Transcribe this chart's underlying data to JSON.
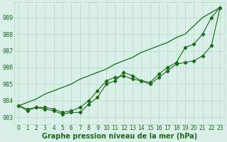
{
  "x": [
    0,
    1,
    2,
    3,
    4,
    5,
    6,
    7,
    8,
    9,
    10,
    11,
    12,
    13,
    14,
    15,
    16,
    17,
    18,
    19,
    20,
    21,
    22,
    23
  ],
  "line_straight": [
    983.7,
    983.9,
    984.1,
    984.4,
    984.6,
    984.8,
    985.0,
    985.3,
    985.5,
    985.7,
    985.9,
    986.2,
    986.4,
    986.6,
    986.9,
    987.1,
    987.3,
    987.5,
    987.8,
    988.0,
    988.5,
    989.0,
    989.3,
    989.6
  ],
  "line_mid": [
    983.7,
    983.5,
    983.6,
    983.6,
    983.5,
    983.3,
    983.4,
    983.6,
    984.0,
    984.6,
    985.2,
    985.4,
    985.5,
    985.3,
    985.2,
    985.1,
    985.6,
    986.0,
    986.3,
    987.2,
    987.4,
    988.0,
    989.0,
    989.6
  ],
  "line_zigzag": [
    983.7,
    983.4,
    983.6,
    983.5,
    983.4,
    983.2,
    983.3,
    983.3,
    983.8,
    984.2,
    985.0,
    985.2,
    985.7,
    985.5,
    985.2,
    985.0,
    985.4,
    985.8,
    986.2,
    986.3,
    986.4,
    986.7,
    987.3,
    989.6
  ],
  "line_color": "#1a6b1a",
  "background_color": "#d8f0e8",
  "grid_color": "#b8d8c8",
  "ylabel_ticks": [
    983,
    984,
    985,
    986,
    987,
    988,
    989
  ],
  "ylim": [
    982.6,
    989.9
  ],
  "xlim": [
    -0.5,
    23.5
  ],
  "xlabel": "Graphe pression niveau de la mer (hPa)",
  "xlabel_fontsize": 7,
  "tick_fontsize": 5.5
}
